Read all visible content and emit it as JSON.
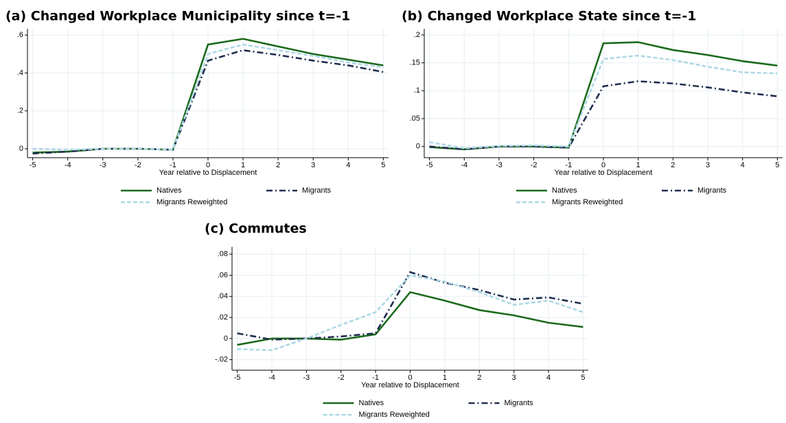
{
  "chart_data": [
    {
      "type": "line",
      "title": "(a) Changed Workplace Municipality since t=-1",
      "xlabel": "Year relative to Displacement",
      "x": [
        -5,
        -4,
        -3,
        -2,
        -1,
        0,
        1,
        2,
        3,
        4,
        5
      ],
      "xlim": [
        -5.15,
        5.15
      ],
      "xticks": [
        -5,
        -4,
        -3,
        -2,
        -1,
        0,
        1,
        2,
        3,
        4,
        5
      ],
      "ylim": [
        -0.047,
        0.633
      ],
      "yticks": [
        0,
        {
          "value": 0.2,
          "label": ".2"
        },
        {
          "value": 0.4,
          "label": ".4"
        },
        {
          "value": 0.6,
          "label": ".6"
        }
      ],
      "grid": true,
      "series": [
        {
          "name": "Natives",
          "color": "#1b6a1b",
          "style": "solid",
          "values": [
            -0.02,
            -0.015,
            0,
            0,
            -0.005,
            0.55,
            0.58,
            0.54,
            0.5,
            0.47,
            0.44
          ]
        },
        {
          "name": "Migrants",
          "color": "#1f2d4d",
          "style": "dashdot",
          "values": [
            -0.025,
            -0.015,
            0,
            0,
            -0.005,
            0.465,
            0.52,
            0.495,
            0.465,
            0.44,
            0.405
          ]
        },
        {
          "name": "Migrants Reweighted",
          "color": "#add8e6",
          "style": "dashed",
          "values": [
            0,
            -0.005,
            0,
            0,
            -0.005,
            0.5,
            0.55,
            0.52,
            0.49,
            0.455,
            0.43
          ]
        }
      ]
    },
    {
      "type": "line",
      "title": "(b) Changed Workplace State since t=-1",
      "xlabel": "Year relative to Displacement",
      "x": [
        -5,
        -4,
        -3,
        -2,
        -1,
        0,
        1,
        2,
        3,
        4,
        5
      ],
      "xlim": [
        -5.15,
        5.15
      ],
      "xticks": [
        -5,
        -4,
        -3,
        -2,
        -1,
        0,
        1,
        2,
        3,
        4,
        5
      ],
      "ylim": [
        -0.02,
        0.211
      ],
      "yticks": [
        0,
        {
          "value": 0.05,
          "label": ".05"
        },
        {
          "value": 0.1,
          "label": ".1"
        },
        {
          "value": 0.15,
          "label": ".15"
        },
        {
          "value": 0.2,
          "label": ".2"
        }
      ],
      "grid": true,
      "series": [
        {
          "name": "Natives",
          "color": "#1b6a1b",
          "style": "solid",
          "values": [
            -0.001,
            -0.005,
            0,
            0,
            -0.002,
            0.185,
            0.187,
            0.173,
            0.164,
            0.153,
            0.145
          ]
        },
        {
          "name": "Migrants",
          "color": "#1f2d4d",
          "style": "dashdot",
          "values": [
            0,
            -0.005,
            0,
            0,
            -0.002,
            0.108,
            0.117,
            0.113,
            0.106,
            0.097,
            0.09
          ]
        },
        {
          "name": "Migrants Reweighted",
          "color": "#add8e6",
          "style": "dashed",
          "values": [
            0.008,
            -0.003,
            0.001,
            0.002,
            0,
            0.157,
            0.163,
            0.155,
            0.143,
            0.133,
            0.131
          ]
        }
      ]
    },
    {
      "type": "line",
      "title": "(c) Commutes",
      "xlabel": "Year relative to Displacement",
      "x": [
        -5,
        -4,
        -3,
        -2,
        -1,
        0,
        1,
        2,
        3,
        4,
        5
      ],
      "xlim": [
        -5.15,
        5.15
      ],
      "xticks": [
        -5,
        -4,
        -3,
        -2,
        -1,
        0,
        1,
        2,
        3,
        4,
        5
      ],
      "ylim": [
        -0.03,
        0.087
      ],
      "yticks": [
        {
          "value": -0.02,
          "label": "-.02"
        },
        0,
        {
          "value": 0.02,
          "label": ".02"
        },
        {
          "value": 0.04,
          "label": ".04"
        },
        {
          "value": 0.06,
          "label": ".06"
        },
        {
          "value": 0.08,
          "label": ".08"
        }
      ],
      "grid": true,
      "series": [
        {
          "name": "Natives",
          "color": "#1b6a1b",
          "style": "solid",
          "values": [
            -0.006,
            0,
            0,
            -0.001,
            0.004,
            0.044,
            0.036,
            0.027,
            0.022,
            0.015,
            0.011
          ]
        },
        {
          "name": "Migrants",
          "color": "#1f2d4d",
          "style": "dashdot",
          "values": [
            0.005,
            -0.001,
            0,
            0.002,
            0.005,
            0.063,
            0.053,
            0.046,
            0.037,
            0.039,
            0.033
          ]
        },
        {
          "name": "Migrants Reweighted",
          "color": "#add8e6",
          "style": "dashed",
          "values": [
            -0.01,
            -0.011,
            0,
            0.013,
            0.025,
            0.06,
            0.054,
            0.044,
            0.032,
            0.036,
            0.025
          ]
        }
      ]
    }
  ]
}
